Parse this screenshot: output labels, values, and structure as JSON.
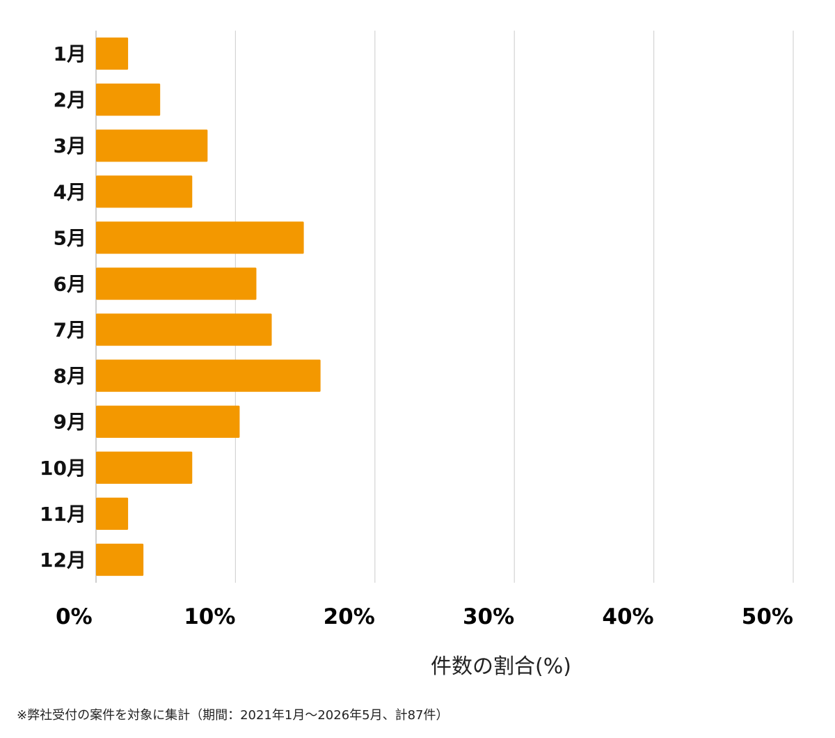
{
  "chart_data": {
    "type": "bar",
    "orientation": "horizontal",
    "categories": [
      "1月",
      "2月",
      "3月",
      "4月",
      "5月",
      "6月",
      "7月",
      "8月",
      "9月",
      "10月",
      "11月",
      "12月"
    ],
    "values": [
      2.3,
      4.6,
      8.0,
      6.9,
      14.9,
      11.5,
      12.6,
      16.1,
      10.3,
      6.9,
      2.3,
      3.4
    ],
    "xlabel": "件数の割合(%)",
    "ylabel": "",
    "xlim": [
      0,
      50
    ],
    "xticks": [
      "0%",
      "10%",
      "20%",
      "30%",
      "40%",
      "50%"
    ],
    "grid": true,
    "bar_color": "#f39800"
  },
  "footnote": "※弊社受付の案件を対象に集計（期間：2021年1月～2026年5月、計87件）"
}
